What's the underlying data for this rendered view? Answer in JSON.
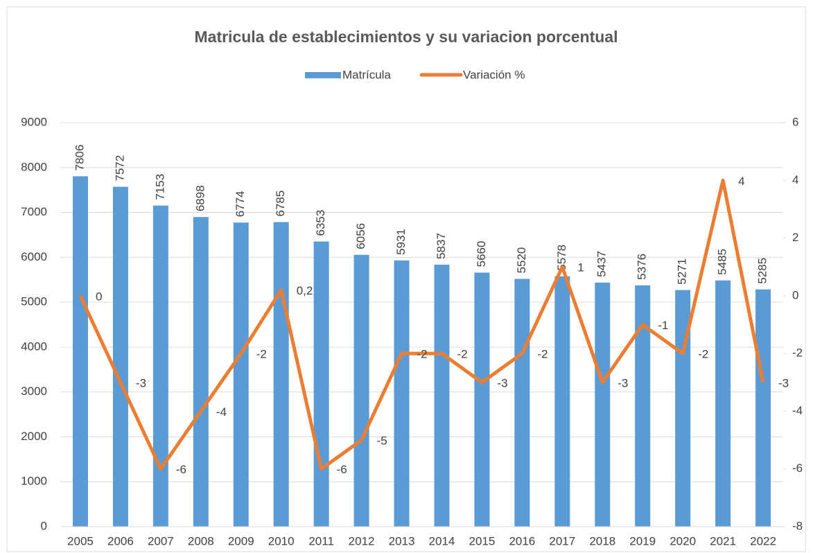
{
  "chart_data": {
    "type": "bar-line",
    "title": "Matricula de establecimientos y su variacion porcentual",
    "categories": [
      "2005",
      "2006",
      "2007",
      "2008",
      "2009",
      "2010",
      "2011",
      "2012",
      "2013",
      "2014",
      "2015",
      "2016",
      "2017",
      "2018",
      "2019",
      "2020",
      "2021",
      "2022"
    ],
    "series": [
      {
        "name": "Matrícula",
        "type": "bar",
        "color": "#5b9bd5",
        "values": [
          7806,
          7572,
          7153,
          6898,
          6774,
          6785,
          6353,
          6056,
          5931,
          5837,
          5660,
          5520,
          5578,
          5437,
          5376,
          5271,
          5485,
          5285
        ]
      },
      {
        "name": "Variación %",
        "type": "line",
        "axis": "y2",
        "color": "#ed7d31",
        "values": [
          0,
          -3,
          -6,
          -4,
          -2,
          0.2,
          -6,
          -5,
          -2,
          -2,
          -3,
          -2,
          1,
          -3,
          -1,
          -2,
          4,
          -3
        ],
        "value_labels": [
          "0",
          "-3",
          "-6",
          "-4",
          "-2",
          "0,2",
          "-6",
          "-5",
          "-2",
          "-2",
          "-3",
          "-2",
          "1",
          "-3",
          "-1",
          "-2",
          "4",
          "-3"
        ]
      }
    ],
    "ylim": [
      0,
      9000
    ],
    "yticks": [
      0,
      1000,
      2000,
      3000,
      4000,
      5000,
      6000,
      7000,
      8000,
      9000
    ],
    "y2lim": [
      -8,
      6
    ],
    "y2ticks": [
      -8,
      -6,
      -4,
      -2,
      0,
      2,
      4,
      6
    ],
    "grid": true,
    "legend": "top"
  }
}
